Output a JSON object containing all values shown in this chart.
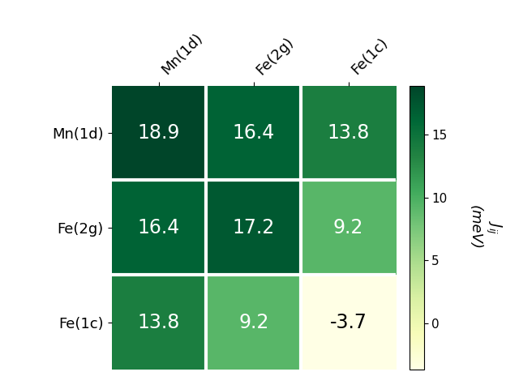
{
  "matrix": [
    [
      18.9,
      16.4,
      13.8
    ],
    [
      16.4,
      17.2,
      9.2
    ],
    [
      13.8,
      9.2,
      -3.7
    ]
  ],
  "row_labels": [
    "Mn(1d)",
    "Fe(2g)",
    "Fe(1c)"
  ],
  "col_labels": [
    "Mn(1d)",
    "Fe(2g)",
    "Fe(1c)"
  ],
  "cmap": "YlGn",
  "vmin": -3.7,
  "vmax": 18.9,
  "cell_fontsize": 17,
  "tick_fontsize": 13,
  "colorbar_tick_fontsize": 11,
  "colorbar_label_fontsize": 13,
  "text_color_light": "white",
  "text_color_dark": "black",
  "text_threshold": 4,
  "linewidths": 3,
  "linecolor": "white",
  "figsize": [
    6.4,
    4.8
  ],
  "dpi": 100
}
